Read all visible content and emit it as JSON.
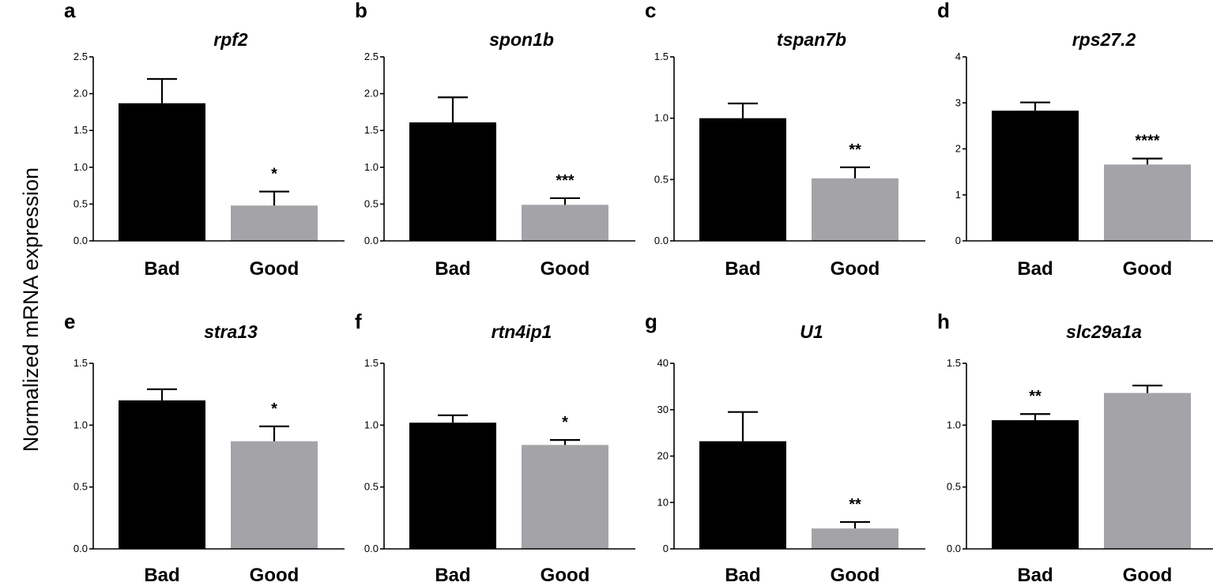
{
  "ylabel": "Normalized mRNA expression",
  "colors": {
    "Bad": "#000000",
    "Good": "#a4a4a8"
  },
  "chart_data": [
    {
      "type": "bar",
      "panel": "a",
      "title": "rpf2",
      "categories": [
        "Bad",
        "Good"
      ],
      "values": [
        1.87,
        0.48
      ],
      "errors": [
        0.33,
        0.19
      ],
      "significance": [
        "",
        "*"
      ],
      "ylim": [
        0,
        2.5
      ],
      "yticks": [
        "0.0",
        "0.5",
        "1.0",
        "1.5",
        "2.0",
        "2.5"
      ]
    },
    {
      "type": "bar",
      "panel": "b",
      "title": "spon1b",
      "categories": [
        "Bad",
        "Good"
      ],
      "values": [
        1.61,
        0.49
      ],
      "errors": [
        0.34,
        0.09
      ],
      "significance": [
        "",
        "***"
      ],
      "ylim": [
        0,
        2.5
      ],
      "yticks": [
        "0.0",
        "0.5",
        "1.0",
        "1.5",
        "2.0",
        "2.5"
      ]
    },
    {
      "type": "bar",
      "panel": "c",
      "title": "tspan7b",
      "categories": [
        "Bad",
        "Good"
      ],
      "values": [
        1.0,
        0.51
      ],
      "errors": [
        0.12,
        0.09
      ],
      "significance": [
        "",
        "**"
      ],
      "ylim": [
        0,
        1.5
      ],
      "yticks": [
        "0.0",
        "0.5",
        "1.0",
        "1.5"
      ]
    },
    {
      "type": "bar",
      "panel": "d",
      "title": "rps27.2",
      "categories": [
        "Bad",
        "Good"
      ],
      "values": [
        2.83,
        1.66
      ],
      "errors": [
        0.18,
        0.13
      ],
      "significance": [
        "",
        "****"
      ],
      "ylim": [
        0,
        4
      ],
      "yticks": [
        "0",
        "1",
        "2",
        "3",
        "4"
      ]
    },
    {
      "type": "bar",
      "panel": "e",
      "title": "stra13",
      "categories": [
        "Bad",
        "Good"
      ],
      "values": [
        1.2,
        0.87
      ],
      "errors": [
        0.09,
        0.12
      ],
      "significance": [
        "",
        "*"
      ],
      "ylim": [
        0,
        1.5
      ],
      "yticks": [
        "0.0",
        "0.5",
        "1.0",
        "1.5"
      ]
    },
    {
      "type": "bar",
      "panel": "f",
      "title": "rtn4ip1",
      "categories": [
        "Bad",
        "Good"
      ],
      "values": [
        1.02,
        0.84
      ],
      "errors": [
        0.06,
        0.04
      ],
      "significance": [
        "",
        "*"
      ],
      "ylim": [
        0,
        1.5
      ],
      "yticks": [
        "0.0",
        "0.5",
        "1.0",
        "1.5"
      ]
    },
    {
      "type": "bar",
      "panel": "g",
      "title": "U1",
      "categories": [
        "Bad",
        "Good"
      ],
      "values": [
        23.2,
        4.4
      ],
      "errors": [
        6.3,
        1.4
      ],
      "significance": [
        "",
        "**"
      ],
      "ylim": [
        0,
        40
      ],
      "yticks": [
        "0",
        "10",
        "20",
        "30",
        "40"
      ]
    },
    {
      "type": "bar",
      "panel": "h",
      "title": "slc29a1a",
      "categories": [
        "Bad",
        "Good"
      ],
      "values": [
        1.04,
        1.26
      ],
      "errors": [
        0.05,
        0.06
      ],
      "significance": [
        "**",
        ""
      ],
      "ylim": [
        0,
        1.5
      ],
      "yticks": [
        "0.0",
        "0.5",
        "1.0",
        "1.5"
      ]
    }
  ]
}
